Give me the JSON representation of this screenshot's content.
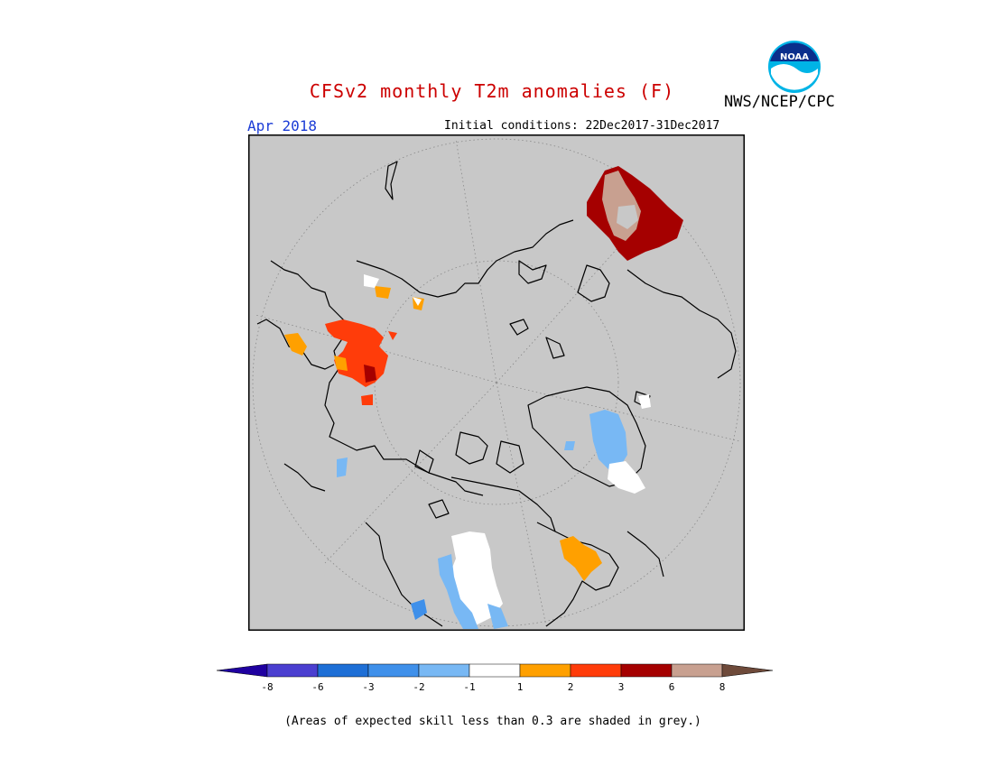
{
  "header": {
    "title": "CFSv2 monthly T2m anomalies (F)",
    "organization": "NWS/NCEP/CPC",
    "logo_text": "NOAA",
    "valid_month": "Apr 2018",
    "initial_conditions": "Initial conditions: 22Dec2017-31Dec2017"
  },
  "map": {
    "projection": "north-polar-stereographic",
    "background_color": "#c8c8c8",
    "skill_mask_color": "#c8c8c8"
  },
  "legend": {
    "tick_labels": [
      "-8",
      "-6",
      "-3",
      "-2",
      "-1",
      "1",
      "2",
      "3",
      "6",
      "8"
    ],
    "colors": [
      "#1f00a0",
      "#4b3fd0",
      "#1e6fd6",
      "#3f90ea",
      "#78b8f4",
      "#ffffff",
      "#ffa000",
      "#ff3c0a",
      "#a50000",
      "#c8a090",
      "#6e4a3a"
    ]
  },
  "footnote": "(Areas of expected skill less than 0.3 are shaded in grey.)"
}
